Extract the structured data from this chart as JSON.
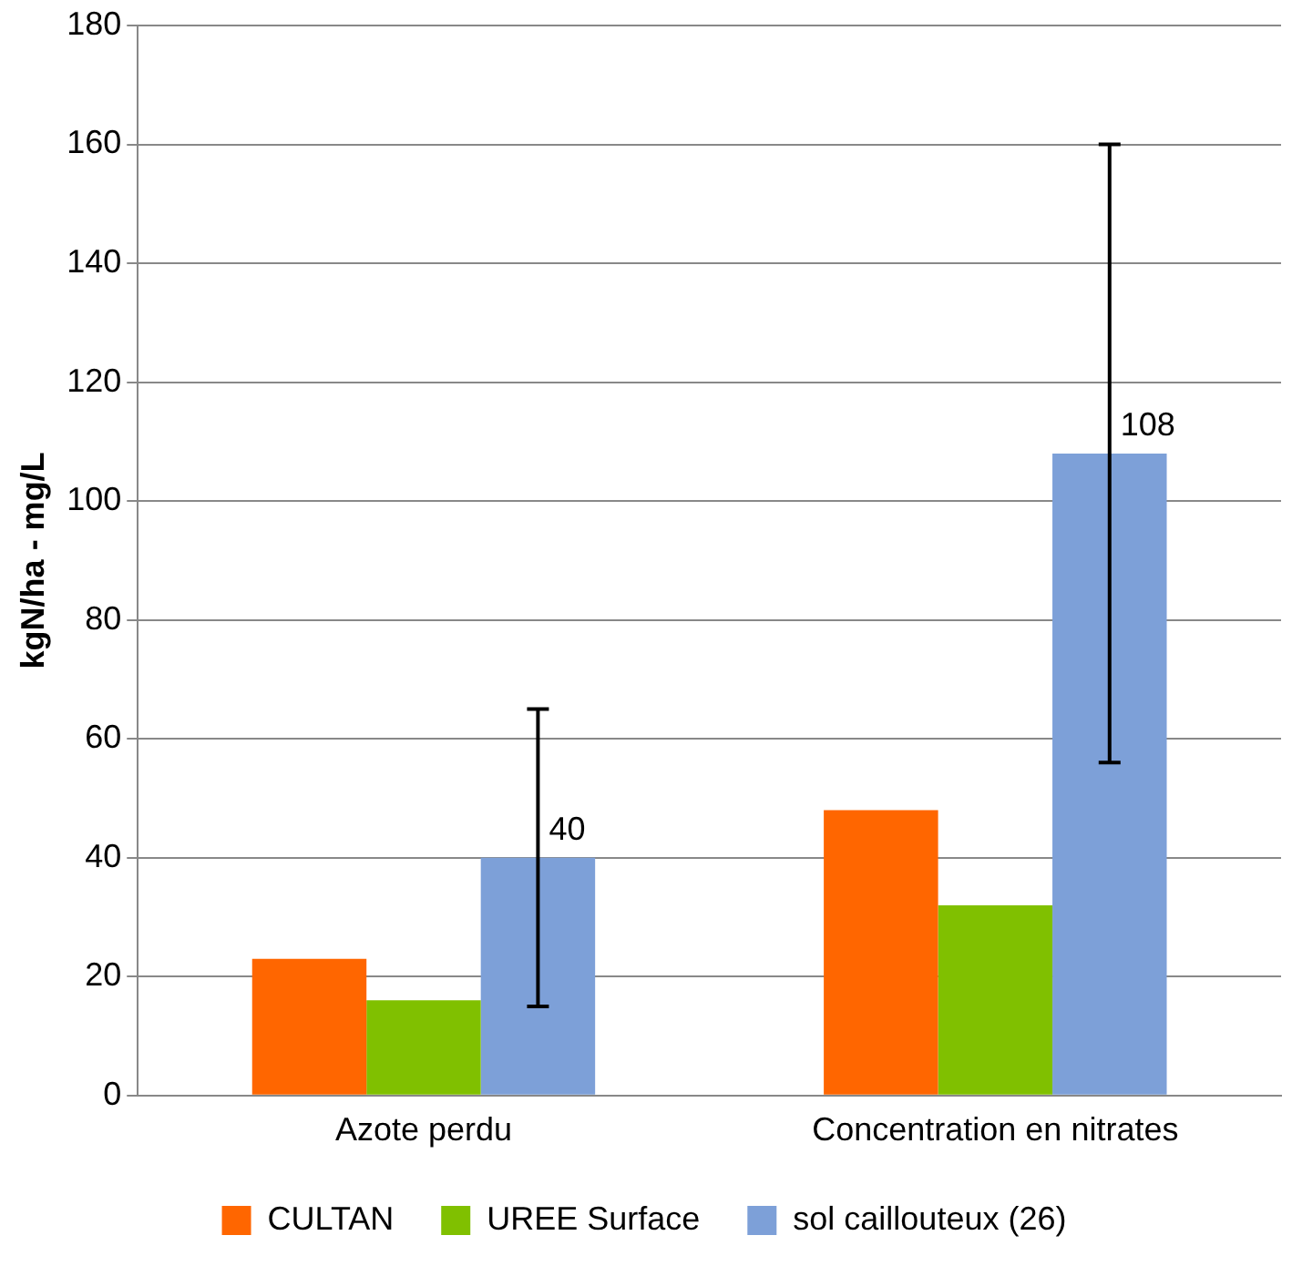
{
  "chart_data": {
    "type": "bar",
    "ylabel": "kgN/ha - mg/L",
    "categories": [
      "Azote perdu",
      "Concentration en nitrates"
    ],
    "series": [
      {
        "name": "CULTAN",
        "color": "#ff6600",
        "values": [
          23,
          48
        ]
      },
      {
        "name": "UREE Surface",
        "color": "#80c000",
        "values": [
          16,
          32
        ]
      },
      {
        "name": "sol caillouteux (26)",
        "color": "#7da0d8",
        "values": [
          40,
          108
        ],
        "errors": [
          [
            15,
            65
          ],
          [
            56,
            160
          ]
        ],
        "value_labels": [
          "40",
          "108"
        ]
      }
    ],
    "ylim": [
      0,
      180
    ],
    "yticks": [
      0,
      20,
      40,
      60,
      80,
      100,
      120,
      140,
      160,
      180
    ],
    "grid": "y",
    "legend": "bottom"
  }
}
